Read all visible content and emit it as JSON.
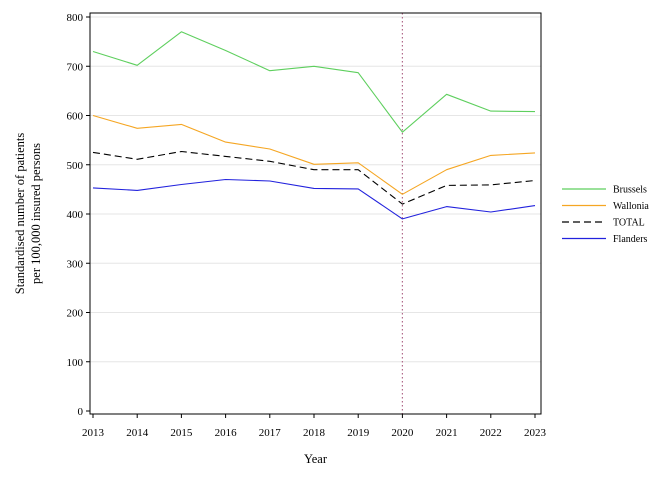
{
  "chart_data": {
    "type": "line",
    "title": "",
    "xlabel": "Year",
    "ylabel_lines": [
      "Standardised number of patients",
      "per 100,000 insured persons"
    ],
    "x": [
      2013,
      2014,
      2015,
      2016,
      2017,
      2018,
      2019,
      2020,
      2021,
      2022,
      2023
    ],
    "xlim": [
      2013,
      2023
    ],
    "ylim": [
      0,
      800
    ],
    "yticks": [
      0,
      100,
      200,
      300,
      400,
      500,
      600,
      700,
      800
    ],
    "grid": "horizontal",
    "reference_line_x": 2020,
    "legend_position": "right",
    "series": [
      {
        "name": "Brussels",
        "color": "#5ecf5e",
        "dash": "solid",
        "values": [
          730,
          702,
          770,
          732,
          691,
          700,
          687,
          566,
          643,
          609,
          608
        ]
      },
      {
        "name": "Wallonia",
        "color": "#f5a623",
        "dash": "solid",
        "values": [
          600,
          574,
          582,
          546,
          532,
          501,
          504,
          440,
          490,
          519,
          524
        ]
      },
      {
        "name": "TOTAL",
        "color": "#000000",
        "dash": "dashed",
        "values": [
          525,
          511,
          527,
          517,
          507,
          490,
          490,
          420,
          458,
          459,
          468
        ]
      },
      {
        "name": "Flanders",
        "color": "#2222dd",
        "dash": "solid",
        "values": [
          453,
          448,
          460,
          470,
          467,
          452,
          451,
          390,
          415,
          404,
          417
        ]
      }
    ]
  }
}
